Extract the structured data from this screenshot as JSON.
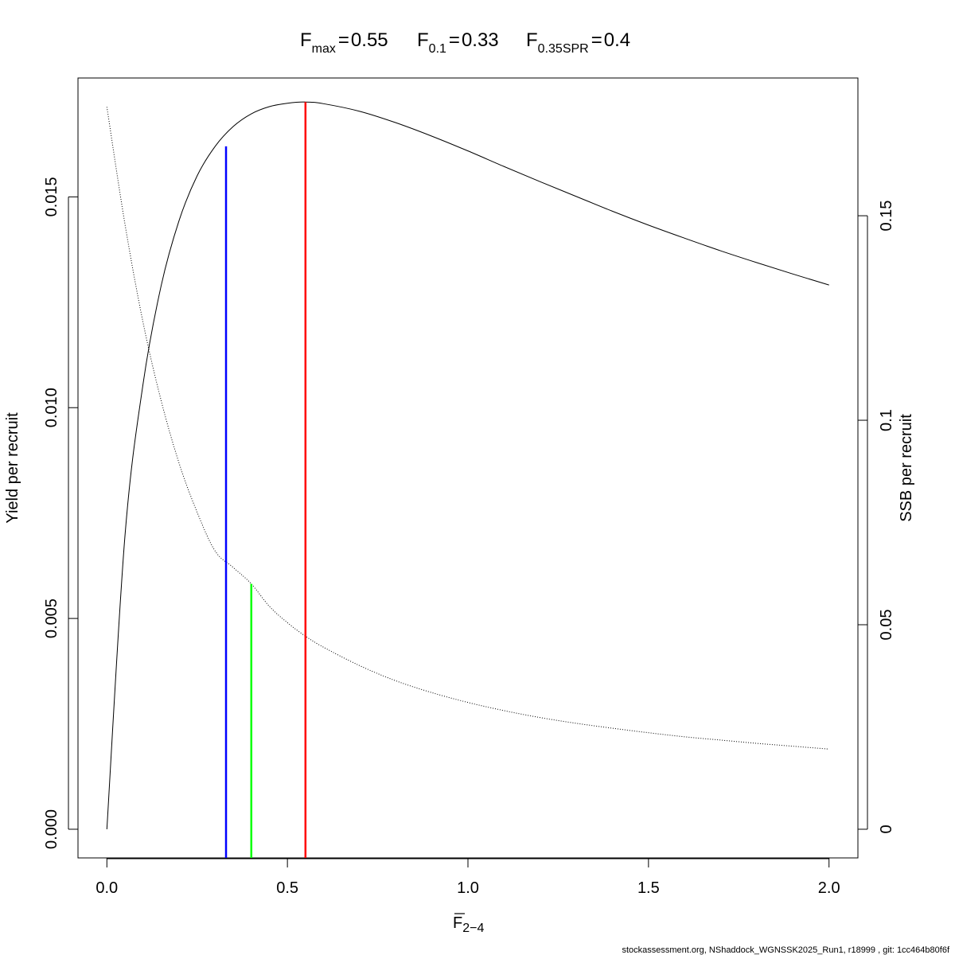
{
  "chart_data": {
    "type": "line",
    "title": {
      "fmax_label": "F",
      "fmax_sub": "max",
      "fmax_value": "0.55",
      "f01_label": "F",
      "f01_sub": "0.1",
      "f01_value": "0.33",
      "fspr_label": "F",
      "fspr_sub": "0.35SPR",
      "fspr_value": "0.4",
      "eq": "="
    },
    "xlabel": {
      "main": "F",
      "sub": "2−4"
    },
    "ylabel_left": "Yield per recruit",
    "ylabel_right": "SSB per recruit",
    "xlim": [
      -0.08,
      2.08
    ],
    "ylim_left": [
      -0.00068,
      0.01782
    ],
    "ylim_right": [
      -0.00701,
      0.18368
    ],
    "x_ticks": [
      {
        "value": 0.0,
        "label": "0.0"
      },
      {
        "value": 0.5,
        "label": "0.5"
      },
      {
        "value": 1.0,
        "label": "1.0"
      },
      {
        "value": 1.5,
        "label": "1.5"
      },
      {
        "value": 2.0,
        "label": "2.0"
      }
    ],
    "y_ticks_left": [
      {
        "value": 0.0,
        "label": "0.000"
      },
      {
        "value": 0.005,
        "label": "0.005"
      },
      {
        "value": 0.01,
        "label": "0.010"
      },
      {
        "value": 0.015,
        "label": "0.015"
      }
    ],
    "y_ticks_right": [
      {
        "value": 0.0,
        "label": "0"
      },
      {
        "value": 0.05,
        "label": "0.05"
      },
      {
        "value": 0.1,
        "label": "0.1"
      },
      {
        "value": 0.15,
        "label": "0.15"
      }
    ],
    "grid": false,
    "series": [
      {
        "axis": "left",
        "line_style": "solid",
        "color": "#000000",
        "x": [
          0,
          0.05,
          0.1,
          0.15,
          0.2,
          0.25,
          0.3,
          0.35,
          0.4,
          0.45,
          0.5,
          0.55,
          0.6,
          0.7,
          0.8,
          0.9,
          1.0,
          1.1,
          1.2,
          1.3,
          1.4,
          1.5,
          1.6,
          1.7,
          1.8,
          1.9,
          2.0
        ],
        "y": [
          0.0,
          0.00695,
          0.01055,
          0.01288,
          0.01444,
          0.0155,
          0.0162,
          0.01667,
          0.01697,
          0.01714,
          0.01722,
          0.01725,
          0.01721,
          0.01703,
          0.01676,
          0.01644,
          0.01609,
          0.01572,
          0.01536,
          0.01501,
          0.01466,
          0.01433,
          0.01402,
          0.01372,
          0.01344,
          0.01317,
          0.01291
        ]
      },
      {
        "axis": "right",
        "line_style": "dotted",
        "color": "#000000",
        "x": [
          0,
          0.05,
          0.1,
          0.15,
          0.2,
          0.25,
          0.3,
          0.35,
          0.4,
          0.45,
          0.5,
          0.55,
          0.6,
          0.7,
          0.8,
          0.9,
          1.0,
          1.1,
          1.2,
          1.3,
          1.4,
          1.5,
          1.6,
          1.7,
          1.8,
          1.9,
          2.0
        ],
        "y": [
          0.1766,
          0.148,
          0.124,
          0.1049,
          0.0895,
          0.0775,
          0.068,
          0.064,
          0.06,
          0.0545,
          0.0505,
          0.0472,
          0.0445,
          0.04,
          0.0363,
          0.0334,
          0.031,
          0.029,
          0.0273,
          0.0259,
          0.0247,
          0.0236,
          0.0226,
          0.0218,
          0.021,
          0.0203,
          0.0196
        ]
      }
    ],
    "reference_lines": [
      {
        "name": "F0.1",
        "x": 0.33,
        "y_top": 0.0162,
        "axis": "left",
        "color": "#0000ff"
      },
      {
        "name": "F0.35SPR",
        "x": 0.4,
        "y_top": 0.06,
        "axis": "right",
        "color": "#00ff00"
      },
      {
        "name": "Fmax",
        "x": 0.55,
        "y_top": 0.01725,
        "axis": "left",
        "color": "#ff0000"
      }
    ]
  },
  "footer": "stockassessment.org, NShaddock_WGNSSK2025_Run1, r18999 , git: 1cc464b80f6f"
}
